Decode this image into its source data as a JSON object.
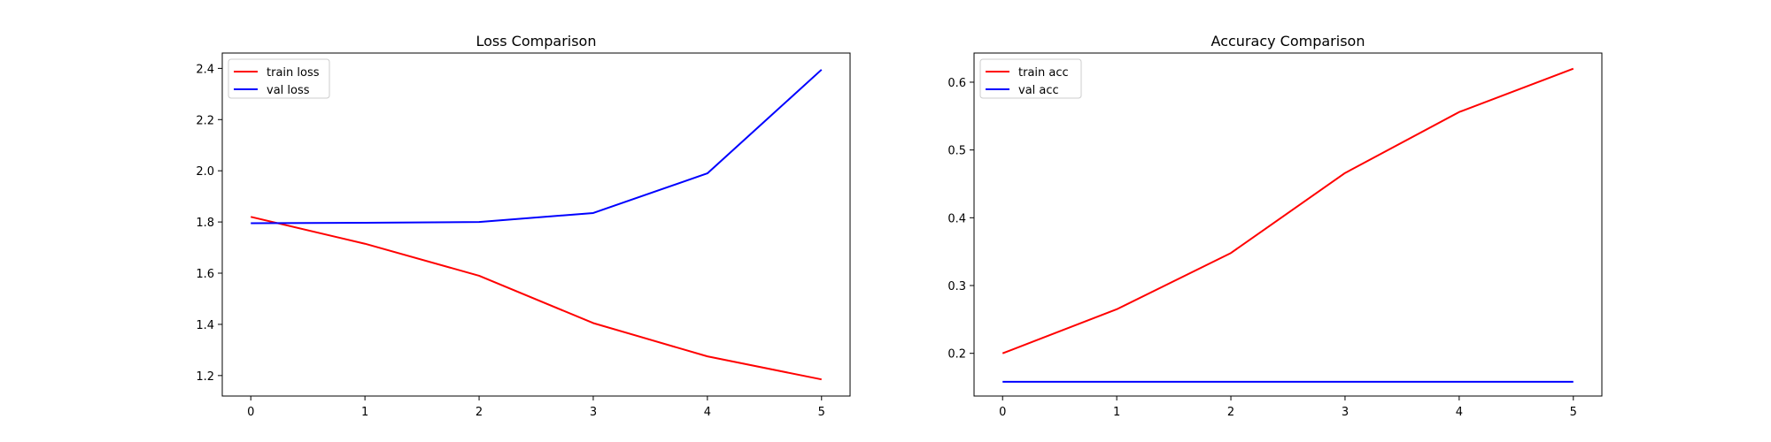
{
  "chart_data": [
    {
      "type": "line",
      "title": "Loss Comparison",
      "xlabel": "",
      "ylabel": "",
      "x": [
        0,
        1,
        2,
        3,
        4,
        5
      ],
      "xticks": [
        0,
        1,
        2,
        3,
        4,
        5
      ],
      "yticks": [
        1.2,
        1.4,
        1.6,
        1.8,
        2.0,
        2.2,
        2.4
      ],
      "ytick_labels": [
        "1.2",
        "1.4",
        "1.6",
        "1.8",
        "2.0",
        "2.2",
        "2.4"
      ],
      "xlim": [
        -0.25,
        5.25
      ],
      "ylim": [
        1.12,
        2.46
      ],
      "grid": false,
      "legend_position": "upper-left",
      "series": [
        {
          "name": "train loss",
          "color": "#ff0000",
          "values": [
            1.82,
            1.715,
            1.59,
            1.405,
            1.275,
            1.185
          ]
        },
        {
          "name": "val loss",
          "color": "#0000ff",
          "values": [
            1.795,
            1.797,
            1.8,
            1.835,
            1.99,
            2.395
          ]
        }
      ]
    },
    {
      "type": "line",
      "title": "Accuracy Comparison",
      "xlabel": "",
      "ylabel": "",
      "x": [
        0,
        1,
        2,
        3,
        4,
        5
      ],
      "xticks": [
        0,
        1,
        2,
        3,
        4,
        5
      ],
      "yticks": [
        0.2,
        0.3,
        0.4,
        0.5,
        0.6
      ],
      "ytick_labels": [
        "0.2",
        "0.3",
        "0.4",
        "0.5",
        "0.6"
      ],
      "xlim": [
        -0.25,
        5.25
      ],
      "ylim": [
        0.137,
        0.643
      ],
      "grid": false,
      "legend_position": "upper-left",
      "series": [
        {
          "name": "train acc",
          "color": "#ff0000",
          "values": [
            0.2,
            0.265,
            0.348,
            0.466,
            0.556,
            0.62
          ]
        },
        {
          "name": "val acc",
          "color": "#0000ff",
          "values": [
            0.158,
            0.158,
            0.158,
            0.158,
            0.158,
            0.158
          ]
        }
      ]
    }
  ]
}
